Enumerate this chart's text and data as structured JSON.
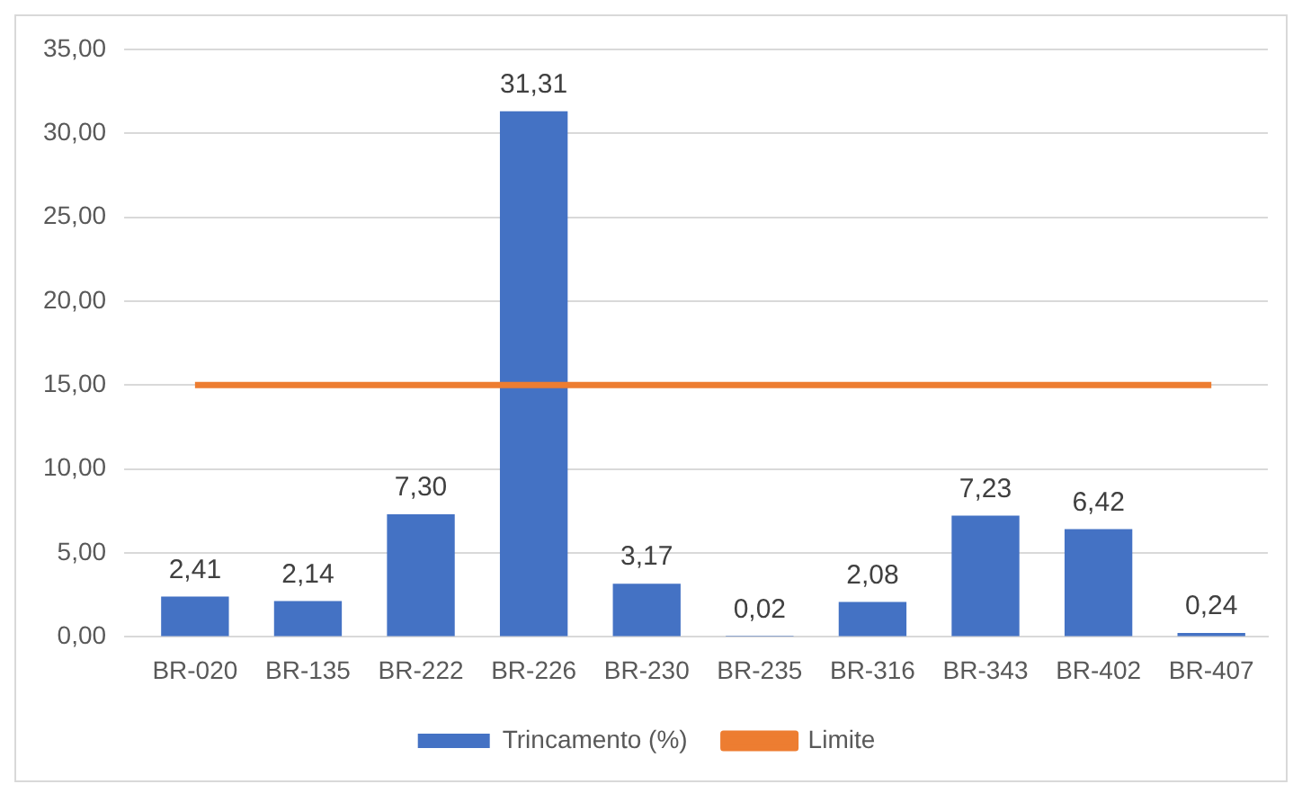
{
  "chart_data": {
    "type": "bar",
    "categories": [
      "BR-020",
      "BR-135",
      "BR-222",
      "BR-226",
      "BR-230",
      "BR-235",
      "BR-316",
      "BR-343",
      "BR-402",
      "BR-407"
    ],
    "series": [
      {
        "name": "Trincamento (%)",
        "color": "#4472c4",
        "values": [
          2.41,
          2.14,
          7.3,
          31.31,
          3.17,
          0.02,
          2.08,
          7.23,
          6.42,
          0.24
        ],
        "value_labels": [
          "2,41",
          "2,14",
          "7,30",
          "31,31",
          "3,17",
          "0,02",
          "2,08",
          "7,23",
          "6,42",
          "0,24"
        ]
      },
      {
        "name": "Limite",
        "type": "line",
        "color": "#ed7d31",
        "values": [
          15,
          15,
          15,
          15,
          15,
          15,
          15,
          15,
          15,
          15
        ]
      }
    ],
    "ylim": [
      0,
      35
    ],
    "yticks": [
      {
        "value": 0,
        "label": "0,00"
      },
      {
        "value": 5,
        "label": "5,00"
      },
      {
        "value": 10,
        "label": "10,00"
      },
      {
        "value": 15,
        "label": "15,00"
      },
      {
        "value": 20,
        "label": "20,00"
      },
      {
        "value": 25,
        "label": "25,00"
      },
      {
        "value": 30,
        "label": "30,00"
      },
      {
        "value": 35,
        "label": "35,00"
      }
    ],
    "grid": "y",
    "legend": "bottom",
    "marker": "none"
  }
}
